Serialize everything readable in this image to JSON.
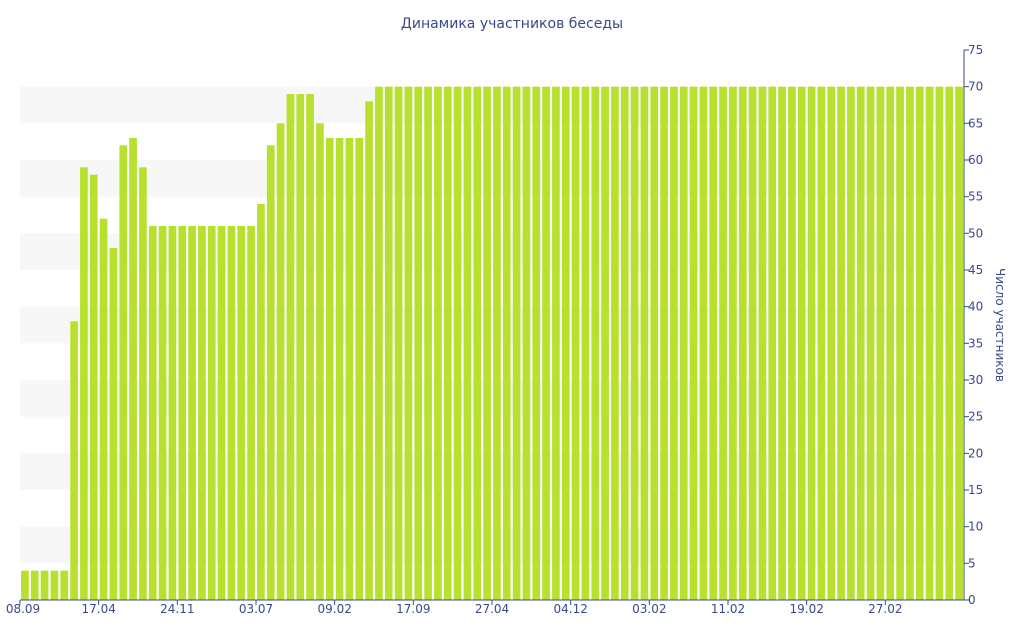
{
  "colors": {
    "bar": "#b8e02e",
    "axis": "#3a4a8a",
    "band": "#f7f7f7"
  },
  "chart_data": {
    "type": "bar",
    "title": "Динамика участников беседы",
    "ylabel": "Число участников",
    "y_axis_position": "right",
    "ylim": [
      0,
      75
    ],
    "y_ticks": [
      0,
      5,
      10,
      15,
      20,
      25,
      30,
      35,
      40,
      45,
      50,
      55,
      60,
      65,
      70,
      75
    ],
    "x_tick_labels": [
      {
        "label": "08.09",
        "index": 0
      },
      {
        "label": "17.04",
        "index": 8
      },
      {
        "label": "24.11",
        "index": 16
      },
      {
        "label": "03.07",
        "index": 24
      },
      {
        "label": "09.02",
        "index": 32
      },
      {
        "label": "17.09",
        "index": 40
      },
      {
        "label": "27.04",
        "index": 48
      },
      {
        "label": "04.12",
        "index": 56
      },
      {
        "label": "03.02",
        "index": 64
      },
      {
        "label": "11.02",
        "index": 72
      },
      {
        "label": "19.02",
        "index": 80
      },
      {
        "label": "27.02",
        "index": 88
      }
    ],
    "grid": "alternating horizontal bands",
    "values": [
      4,
      4,
      4,
      4,
      4,
      38,
      59,
      58,
      52,
      48,
      62,
      63,
      59,
      51,
      51,
      51,
      51,
      51,
      51,
      51,
      51,
      51,
      51,
      51,
      54,
      62,
      65,
      69,
      69,
      69,
      65,
      63,
      63,
      63,
      63,
      68,
      70,
      70,
      70,
      70,
      70,
      70,
      70,
      70,
      70,
      70,
      70,
      70,
      70,
      70,
      70,
      70,
      70,
      70,
      70,
      70,
      70,
      70,
      70,
      70,
      70,
      70,
      70,
      70,
      70,
      70,
      70,
      70,
      70,
      70,
      70,
      70,
      70,
      70,
      70,
      70,
      70,
      70,
      70,
      70,
      70,
      70,
      70,
      70,
      70,
      70,
      70,
      70,
      70,
      70,
      70,
      70,
      70,
      70,
      70,
      70
    ]
  }
}
